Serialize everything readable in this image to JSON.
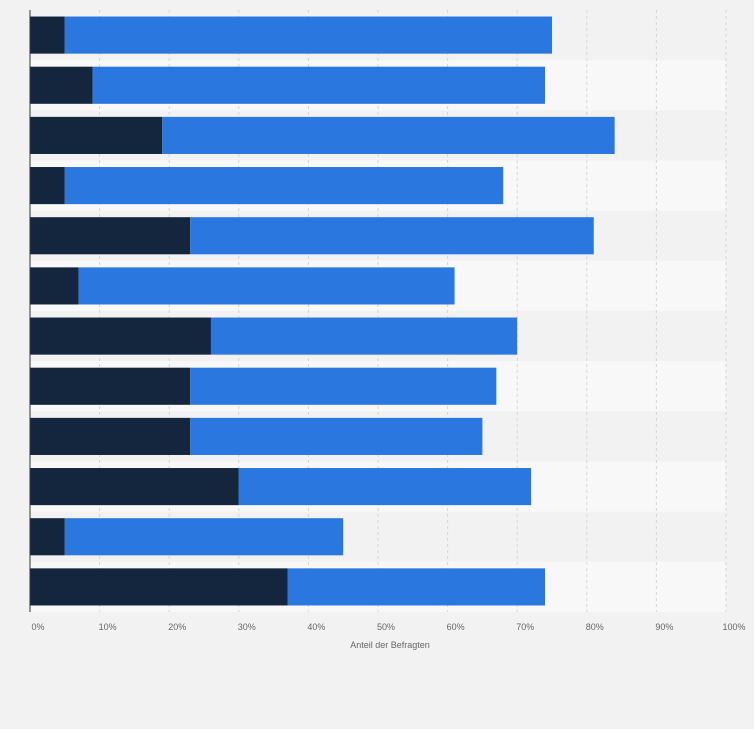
{
  "chart_data": {
    "type": "bar",
    "orientation": "horizontal",
    "stacked": true,
    "title": "",
    "xlabel": "Anteil der Befragten",
    "ylabel": "",
    "xlim": [
      0,
      100
    ],
    "x_ticks": [
      "0%",
      "10%",
      "20%",
      "30%",
      "40%",
      "50%",
      "60%",
      "70%",
      "80%",
      "90%",
      "100%"
    ],
    "grid": true,
    "legend": "none",
    "categories": [
      "",
      "",
      "",
      "",
      "",
      "",
      "",
      "",
      "",
      "",
      "",
      ""
    ],
    "series": [
      {
        "color": "#13263d",
        "values": [
          5,
          9,
          19,
          5,
          23,
          7,
          26,
          23,
          23,
          30,
          5,
          37
        ]
      },
      {
        "color": "#2a77e0",
        "values": [
          70,
          65,
          65,
          63,
          58,
          54,
          44,
          44,
          42,
          42,
          40,
          37
        ]
      }
    ]
  }
}
